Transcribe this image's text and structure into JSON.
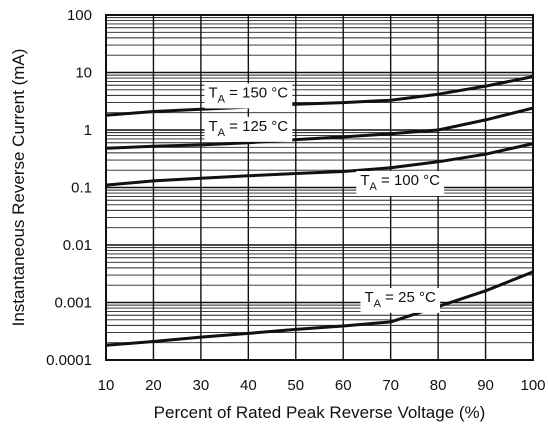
{
  "chart_data": {
    "type": "line",
    "xlabel": "Percent of Rated Peak Reverse Voltage (%)",
    "ylabel": "Instantaneous Reverse Current (mA)",
    "xlim": [
      10,
      100
    ],
    "ylim": [
      0.0001,
      100
    ],
    "yscale": "log",
    "grid": true,
    "x_ticks": [
      "10",
      "20",
      "30",
      "40",
      "50",
      "60",
      "70",
      "80",
      "90",
      "100"
    ],
    "y_ticks": [
      "0.0001",
      "0.001",
      "0.01",
      "0.1",
      "1",
      "10",
      "100"
    ],
    "series": [
      {
        "name": "TA = 150 °C",
        "label_main": "T",
        "label_sub": "A",
        "label_rest": " = 150 °C",
        "x": [
          10,
          20,
          30,
          40,
          50,
          60,
          70,
          80,
          90,
          100
        ],
        "y": [
          1.8,
          2.1,
          2.3,
          2.5,
          2.8,
          3.0,
          3.3,
          4.2,
          5.8,
          8.5
        ]
      },
      {
        "name": "TA = 125 °C",
        "label_main": "T",
        "label_sub": "A",
        "label_rest": " = 125 °C",
        "x": [
          10,
          20,
          30,
          40,
          50,
          60,
          70,
          80,
          90,
          100
        ],
        "y": [
          0.48,
          0.52,
          0.55,
          0.6,
          0.68,
          0.76,
          0.86,
          1.0,
          1.5,
          2.4
        ]
      },
      {
        "name": "TA = 100 °C",
        "label_main": "T",
        "label_sub": "A",
        "label_rest": " = 100 °C",
        "x": [
          10,
          20,
          30,
          40,
          50,
          60,
          70,
          80,
          90,
          100
        ],
        "y": [
          0.11,
          0.13,
          0.145,
          0.16,
          0.175,
          0.19,
          0.22,
          0.28,
          0.38,
          0.58
        ]
      },
      {
        "name": "TA = 25 °C",
        "label_main": "T",
        "label_sub": "A",
        "label_rest": " = 25 °C",
        "x": [
          10,
          20,
          30,
          40,
          50,
          60,
          70,
          80,
          90,
          100
        ],
        "y": [
          0.00018,
          0.00021,
          0.00025,
          0.00029,
          0.00034,
          0.00039,
          0.00046,
          0.00085,
          0.0016,
          0.0034
        ]
      }
    ]
  }
}
